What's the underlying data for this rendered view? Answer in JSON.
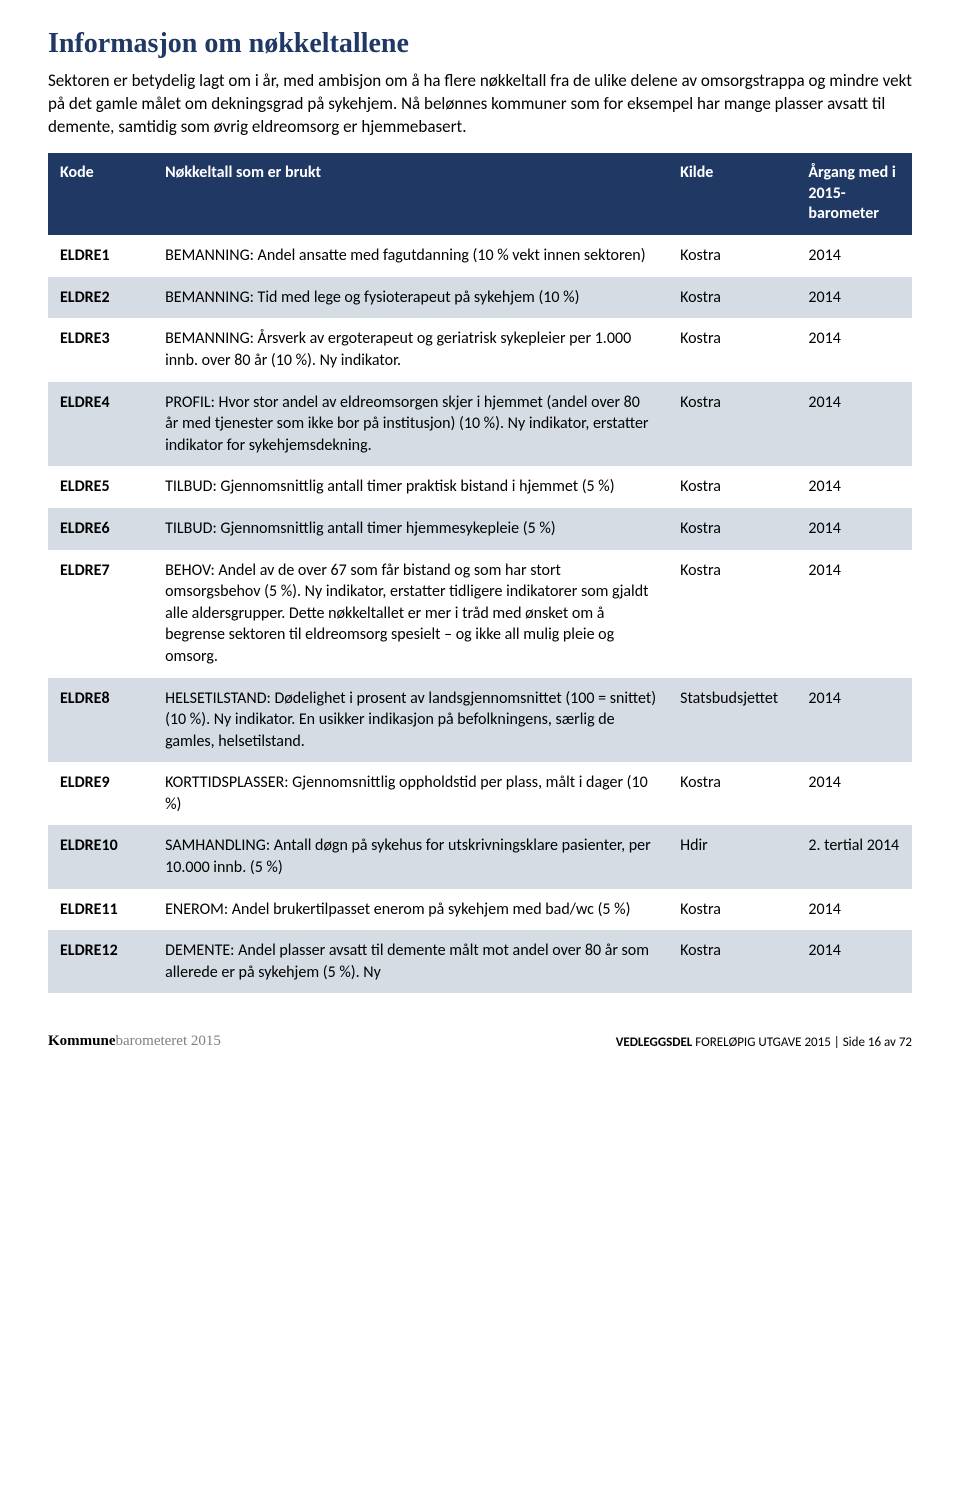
{
  "title": "Informasjon om nøkkeltallene",
  "intro": "Sektoren er betydelig lagt om i år, med ambisjon om å ha flere nøkkeltall fra de ulike delene av omsorgstrappa og mindre vekt på det gamle målet om dekningsgrad på sykehjem. Nå belønnes kommuner som for eksempel har mange plasser avsatt til demente, samtidig som øvrig eldreomsorg er hjemmebasert.",
  "table": {
    "headers": {
      "kode": "Kode",
      "beskrivelse": "Nøkkeltall som er brukt",
      "kilde": "Kilde",
      "aargang": "Årgang med i 2015-barometer"
    },
    "rows": [
      {
        "kode": "ELDRE1",
        "beskrivelse": "BEMANNING: Andel ansatte med fagutdanning (10 % vekt innen sektoren)",
        "kilde": "Kostra",
        "aargang": "2014"
      },
      {
        "kode": "ELDRE2",
        "beskrivelse": "BEMANNING: Tid med lege og fysioterapeut på sykehjem (10 %)",
        "kilde": "Kostra",
        "aargang": "2014"
      },
      {
        "kode": "ELDRE3",
        "beskrivelse": "BEMANNING: Årsverk av ergoterapeut og geriatrisk sykepleier per 1.000 innb. over 80 år (10 %). Ny indikator.",
        "kilde": "Kostra",
        "aargang": "2014"
      },
      {
        "kode": "ELDRE4",
        "beskrivelse": "PROFIL: Hvor stor andel av eldreomsorgen skjer i hjemmet (andel over 80 år med tjenester som ikke bor på institusjon) (10 %). Ny indikator, erstatter indikator for sykehjemsdekning.",
        "kilde": "Kostra",
        "aargang": "2014"
      },
      {
        "kode": "ELDRE5",
        "beskrivelse": "TILBUD: Gjennomsnittlig antall timer praktisk bistand i hjemmet (5 %)",
        "kilde": "Kostra",
        "aargang": "2014"
      },
      {
        "kode": "ELDRE6",
        "beskrivelse": "TILBUD: Gjennomsnittlig antall timer hjemmesykepleie (5 %)",
        "kilde": "Kostra",
        "aargang": "2014"
      },
      {
        "kode": "ELDRE7",
        "beskrivelse": "BEHOV: Andel av de over 67 som får bistand og som har stort omsorgsbehov (5 %). Ny indikator, erstatter tidligere indikatorer som gjaldt alle aldersgrupper. Dette nøkkeltallet er mer i tråd med ønsket om å begrense sektoren til eldreomsorg spesielt – og ikke all mulig pleie og omsorg.",
        "kilde": "Kostra",
        "aargang": "2014"
      },
      {
        "kode": "ELDRE8",
        "beskrivelse": "HELSETILSTAND: Dødelighet i prosent av landsgjennomsnittet (100 = snittet) (10 %). Ny indikator. En usikker indikasjon på befolkningens, særlig de gamles, helsetilstand.",
        "kilde": "Statsbudsjettet",
        "aargang": "2014"
      },
      {
        "kode": "ELDRE9",
        "beskrivelse": "KORTTIDSPLASSER: Gjennomsnittlig oppholdstid per plass, målt i dager (10 %)",
        "kilde": "Kostra",
        "aargang": "2014"
      },
      {
        "kode": "ELDRE10",
        "beskrivelse": "SAMHANDLING: Antall døgn på sykehus for utskrivningsklare pasienter, per 10.000 innb. (5 %)",
        "kilde": "Hdir",
        "aargang": "2. tertial 2014"
      },
      {
        "kode": "ELDRE11",
        "beskrivelse": "ENEROM: Andel brukertilpasset enerom på sykehjem med bad/wc (5 %)",
        "kilde": "Kostra",
        "aargang": "2014"
      },
      {
        "kode": "ELDRE12",
        "beskrivelse": "DEMENTE: Andel plasser avsatt til demente målt mot andel over 80 år som allerede er på sykehjem (5 %). Ny",
        "kilde": "Kostra",
        "aargang": "2014"
      }
    ]
  },
  "footer": {
    "brand_bold": "Kommune",
    "brand_light": "barometeret 2015",
    "right_bold": "VEDLEGGSDEL",
    "right_rest": " FORELØPIG UTGAVE 2015 | Side 16 av 72"
  },
  "colors": {
    "title": "#1f3864",
    "header_bg": "#1f3864",
    "row_even_bg": "#d5dce4",
    "row_odd_bg": "#ffffff",
    "text": "#000000"
  }
}
